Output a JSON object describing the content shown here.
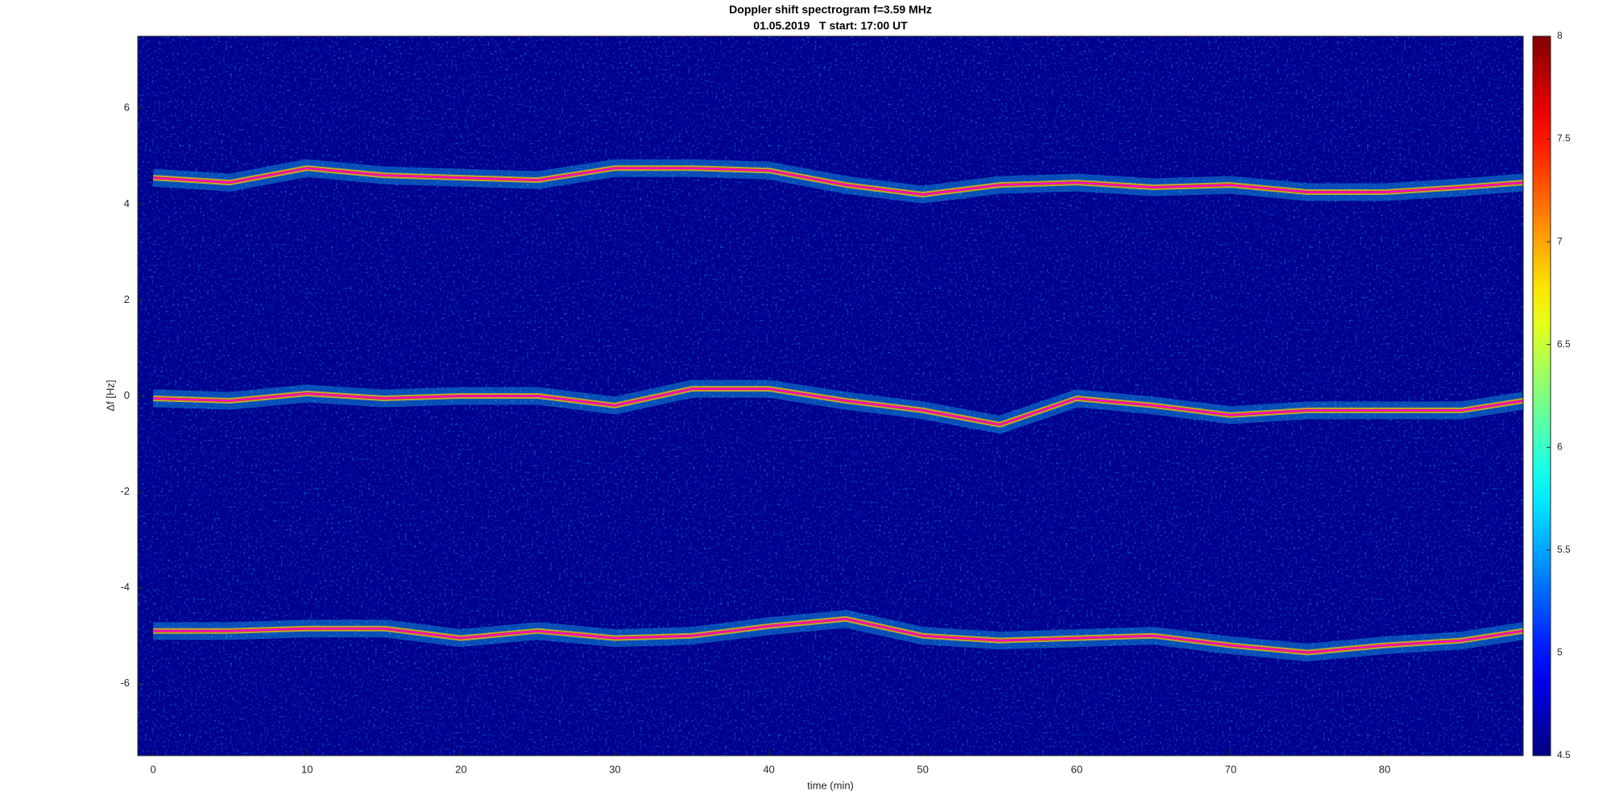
{
  "chart_data": {
    "type": "spectrogram",
    "title": "Doppler shift spectrogram f=3.59 MHz",
    "subtitle": "01.05.2019   T start: 17:00 UT",
    "x_label": "time (min)",
    "y_label": "Δf [Hz]",
    "xlim": [
      -1,
      89
    ],
    "xticks": [
      0,
      10,
      20,
      30,
      40,
      50,
      60,
      70,
      80
    ],
    "ylim": [
      -7.5,
      7.5
    ],
    "yticks": [
      -6,
      -4,
      -2,
      0,
      2,
      4,
      6
    ],
    "clim": [
      4.5,
      8
    ],
    "cticks": [
      4.5,
      5,
      5.5,
      6,
      6.5,
      7,
      7.5,
      8
    ],
    "colormap": "jet",
    "x": [
      0,
      5,
      10,
      15,
      20,
      25,
      30,
      35,
      40,
      45,
      50,
      55,
      60,
      65,
      70,
      75,
      80,
      85,
      89
    ],
    "series": [
      {
        "color": "#ff00ff",
        "values": [
          4.55,
          4.45,
          4.75,
          4.6,
          4.55,
          4.5,
          4.75,
          4.75,
          4.7,
          4.4,
          4.2,
          4.4,
          4.45,
          4.35,
          4.4,
          4.25,
          4.25,
          4.35,
          4.45
        ]
      },
      {
        "color": "#ff00ff",
        "values": [
          -0.05,
          -0.1,
          0.05,
          -0.05,
          0,
          0,
          -0.2,
          0.15,
          0.15,
          -0.1,
          -0.3,
          -0.6,
          -0.05,
          -0.2,
          -0.4,
          -0.3,
          -0.3,
          -0.3,
          -0.1
        ]
      },
      {
        "color": "#ff00ff",
        "values": [
          -4.9,
          -4.9,
          -4.85,
          -4.85,
          -5.05,
          -4.9,
          -5.05,
          -5.0,
          -4.8,
          -4.65,
          -5.0,
          -5.1,
          -5.05,
          -5.0,
          -5.2,
          -5.35,
          -5.2,
          -5.1,
          -4.9
        ]
      }
    ]
  }
}
